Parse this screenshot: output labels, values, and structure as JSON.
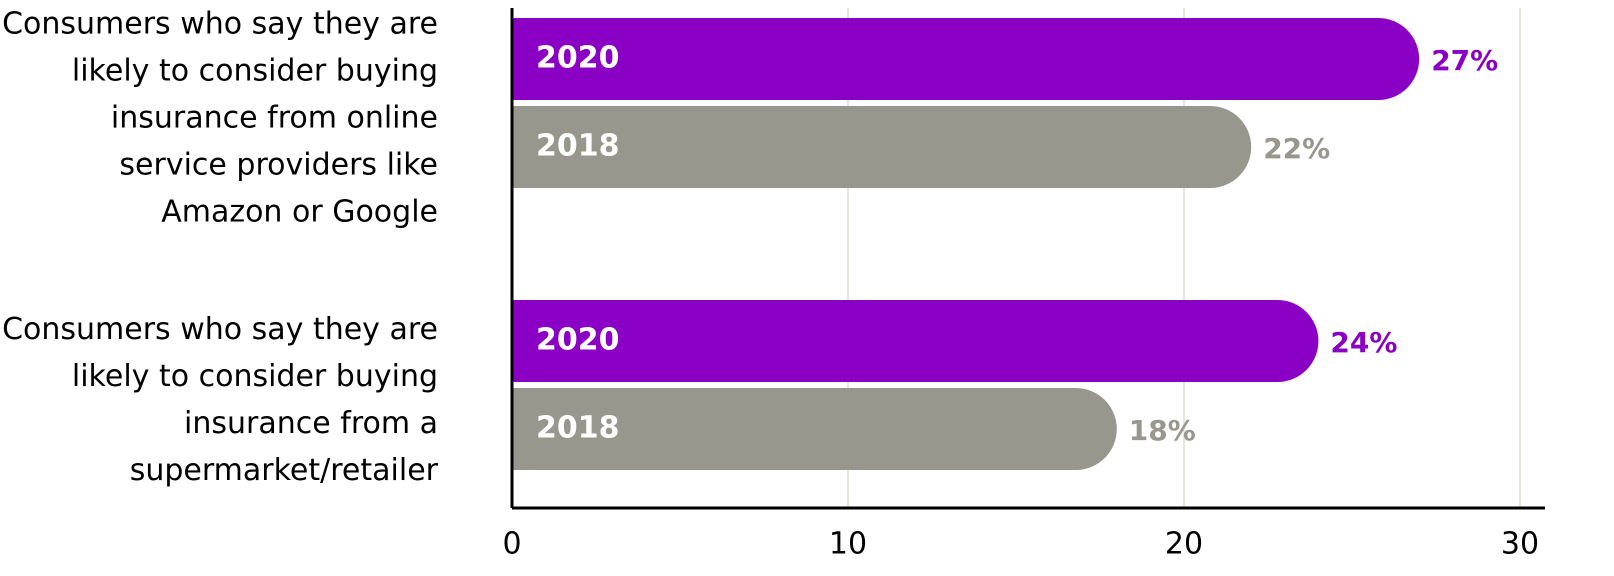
{
  "chart_data": {
    "type": "bar",
    "orientation": "horizontal",
    "categories": [
      "Consumers who say they are likely to consider buying insurance from online service providers like Amazon or Google",
      "Consumers who say they are likely to consider buying insurance from a supermarket/retailer"
    ],
    "series": [
      {
        "name": "2020",
        "color": "#8a00c4",
        "values": [
          27,
          24
        ],
        "value_labels": [
          "27%",
          "24%"
        ]
      },
      {
        "name": "2018",
        "color": "#98978d",
        "values": [
          22,
          18
        ],
        "value_labels": [
          "22%",
          "18%"
        ]
      }
    ],
    "xlim": [
      0,
      30
    ],
    "xticks": [
      0,
      10,
      20,
      30
    ],
    "grid": true
  }
}
